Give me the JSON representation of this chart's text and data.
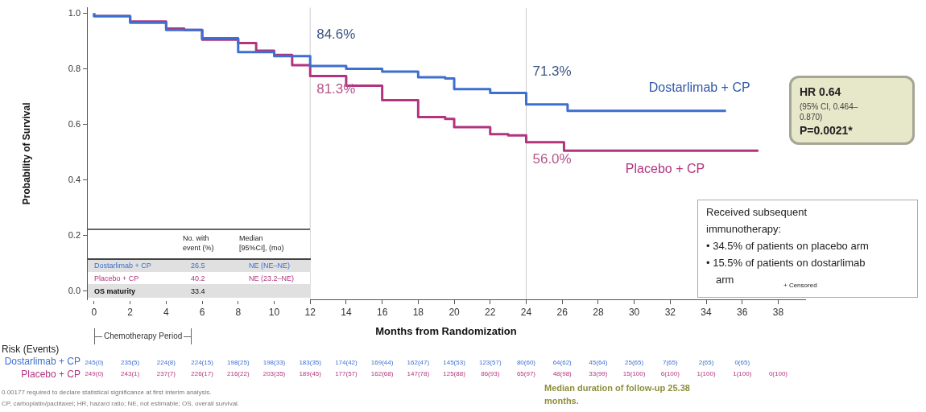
{
  "chart_data": {
    "type": "step",
    "xlabel": "Months from Randomization",
    "ylabel": "Probability of Survival",
    "xlim": [
      -0.4,
      39.5
    ],
    "ylim": [
      -0.03,
      1.02
    ],
    "xticks": [
      0,
      2,
      4,
      6,
      8,
      10,
      12,
      14,
      16,
      18,
      20,
      22,
      24,
      26,
      28,
      30,
      32,
      34,
      36,
      38
    ],
    "yticks": [
      {
        "value": 0,
        "label": "0.0"
      },
      0.2,
      0.4,
      0.6,
      0.8,
      {
        "value": 1,
        "label": "1.0"
      }
    ],
    "grid": false,
    "legend": false,
    "series": [
      {
        "name": "Dostarlimab + CP",
        "color": "#3d6fd0",
        "x": [
          0,
          2,
          4,
          6,
          8,
          10,
          12,
          14,
          16,
          18,
          19.5,
          20,
          22,
          24,
          26.3,
          29.8,
          35.1
        ],
        "values": [
          1,
          0.99,
          0.966,
          0.94,
          0.91,
          0.86,
          0.846,
          0.81,
          0.8,
          0.79,
          0.77,
          0.765,
          0.727,
          0.713,
          0.672,
          0.649,
          0.649
        ]
      },
      {
        "name": "Placebo + CP",
        "color": "#b2347f",
        "x": [
          0,
          2,
          4,
          5,
          6,
          8,
          9,
          10,
          11,
          12,
          14,
          16,
          18,
          19.5,
          20,
          22,
          23,
          24,
          26.1,
          29.8,
          36.9
        ],
        "values": [
          1,
          0.99,
          0.97,
          0.945,
          0.94,
          0.905,
          0.893,
          0.865,
          0.85,
          0.813,
          0.774,
          0.739,
          0.687,
          0.626,
          0.62,
          0.59,
          0.565,
          0.56,
          0.536,
          0.505,
          0.505
        ]
      }
    ],
    "ref_lines": [
      {
        "axis": "x",
        "value": 12,
        "color": "#cccccc"
      },
      {
        "axis": "x",
        "value": 24,
        "color": "#cccccc"
      }
    ],
    "annotations": [
      "84.6%",
      "81.3%",
      "71.3%",
      "56.0%",
      "HR 0.64",
      "(95% CI, 0.464–",
      "0.870)",
      "P=0.0021*",
      "Received subsequent",
      "immunotherapy:",
      "• 34.5% of patients on placebo arm",
      "• 15.5% of patients on dostarlimab",
      "arm",
      "+ Censored",
      "No. with",
      "event (%)",
      "Median",
      "[95%CI], (mo)",
      "Dostarlimab + CP",
      "26.5",
      "NE (NE–NE)",
      "Placebo + CP",
      "40.2",
      "NE (23.2–NE)",
      "OS maturity",
      "33.4",
      "Chemotherapy Period",
      "Risk (Events)",
      "Dostarlimab + CP",
      "Placebo + CP",
      "245(0)",
      "235(5)",
      "224(8)",
      "224(15)",
      "198(25)",
      "198(33)",
      "183(35)",
      "174(42)",
      "169(44)",
      "162(47)",
      "145(53)",
      "123(57)",
      "80(60)",
      "64(62)",
      "45(64)",
      "25(65)",
      "7(65)",
      "2(65)",
      "0(65)",
      "249(0)",
      "243(1)",
      "237(7)",
      "226(17)",
      "216(22)",
      "203(35)",
      "189(45)",
      "177(57)",
      "162(68)",
      "147(78)",
      "125(88)",
      "86(93)",
      "65(97)",
      "48(98)",
      "33(99)",
      "15(100)",
      "6(100)",
      "1(100)",
      "1(100)",
      "0(100)",
      "0.00177 required to declare statistical significance at first interim analysis.",
      "CP, carboplatin/paclitaxel; HR, hazard ratio; NE, not estimable; OS, overall survival.",
      "Median duration of follow-up 25.38",
      "months."
    ]
  }
}
